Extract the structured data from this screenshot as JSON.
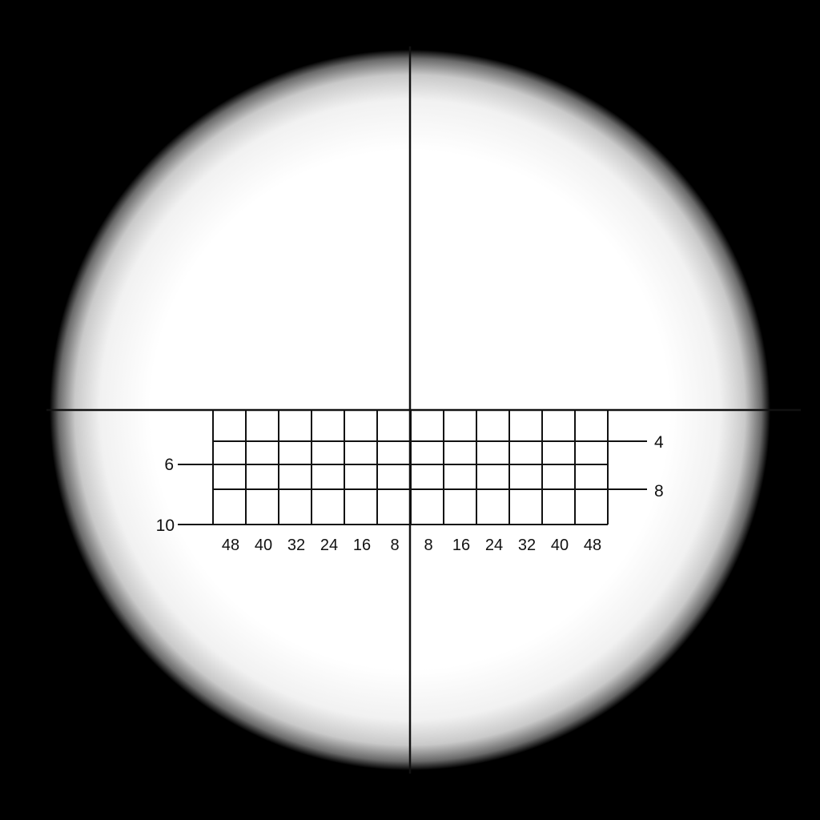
{
  "scope": {
    "background_color": "#000000",
    "lens_color": "#ffffff",
    "reticle_color": "#111111"
  },
  "reticle": {
    "horizontal_ticks_left": [
      "48",
      "40",
      "32",
      "24",
      "16",
      "8"
    ],
    "horizontal_ticks_right": [
      "8",
      "16",
      "24",
      "32",
      "40",
      "48"
    ],
    "range_markers_left": [
      "6",
      "10"
    ],
    "range_markers_right": [
      "4",
      "8"
    ]
  }
}
